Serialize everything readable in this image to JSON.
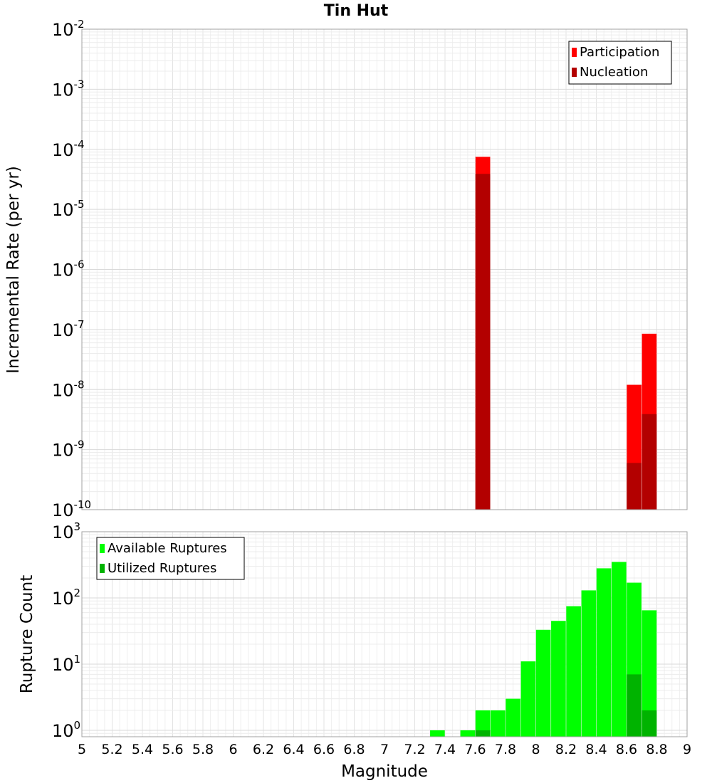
{
  "chart_data": {
    "title": "Tin Hut",
    "xlabel": "Magnitude",
    "xlim": [
      5,
      9
    ],
    "x_ticks": [
      "5",
      "5.2",
      "5.4",
      "5.6",
      "5.8",
      "6",
      "6.2",
      "6.4",
      "6.6",
      "6.8",
      "7",
      "7.2",
      "7.4",
      "7.6",
      "7.8",
      "8",
      "8.2",
      "8.4",
      "8.6",
      "8.8",
      "9"
    ],
    "panels": [
      {
        "type": "bar",
        "ylabel": "Incremental Rate (per yr)",
        "yscale": "log",
        "ylim": [
          1e-10,
          0.01
        ],
        "y_ticks": [
          {
            "base": "10",
            "exp": "-10"
          },
          {
            "base": "10",
            "exp": "-9"
          },
          {
            "base": "10",
            "exp": "-8"
          },
          {
            "base": "10",
            "exp": "-7"
          },
          {
            "base": "10",
            "exp": "-6"
          },
          {
            "base": "10",
            "exp": "-5"
          },
          {
            "base": "10",
            "exp": "-4"
          },
          {
            "base": "10",
            "exp": "-3"
          },
          {
            "base": "10",
            "exp": "-2"
          }
        ],
        "legend_position": "top-right",
        "series": [
          {
            "name": "Participation",
            "color": "#ff0000",
            "x": [
              7.65,
              8.65,
              8.75
            ],
            "values": [
              7.5e-05,
              1.2e-08,
              8.5e-08
            ]
          },
          {
            "name": "Nucleation",
            "color": "#b30000",
            "x": [
              7.65,
              8.65,
              8.75
            ],
            "values": [
              3.9e-05,
              6e-10,
              3.9e-09
            ]
          }
        ]
      },
      {
        "type": "bar",
        "ylabel": "Rupture Count",
        "yscale": "log",
        "ylim": [
          0.8,
          1000
        ],
        "y_ticks": [
          {
            "base": "10",
            "exp": "0"
          },
          {
            "base": "10",
            "exp": "1"
          },
          {
            "base": "10",
            "exp": "2"
          },
          {
            "base": "10",
            "exp": "3"
          }
        ],
        "legend_position": "top-left",
        "series": [
          {
            "name": "Available Ruptures",
            "color": "#00ff00",
            "x": [
              7.35,
              7.55,
              7.65,
              7.75,
              7.85,
              7.95,
              8.05,
              8.15,
              8.25,
              8.35,
              8.45,
              8.55,
              8.65,
              8.75
            ],
            "values": [
              1,
              1,
              2,
              2,
              3,
              11,
              33,
              45,
              75,
              130,
              280,
              350,
              170,
              65
            ]
          },
          {
            "name": "Utilized Ruptures",
            "color": "#00b300",
            "x": [
              7.65,
              8.65,
              8.75
            ],
            "values": [
              1,
              7,
              2
            ]
          }
        ]
      }
    ]
  }
}
